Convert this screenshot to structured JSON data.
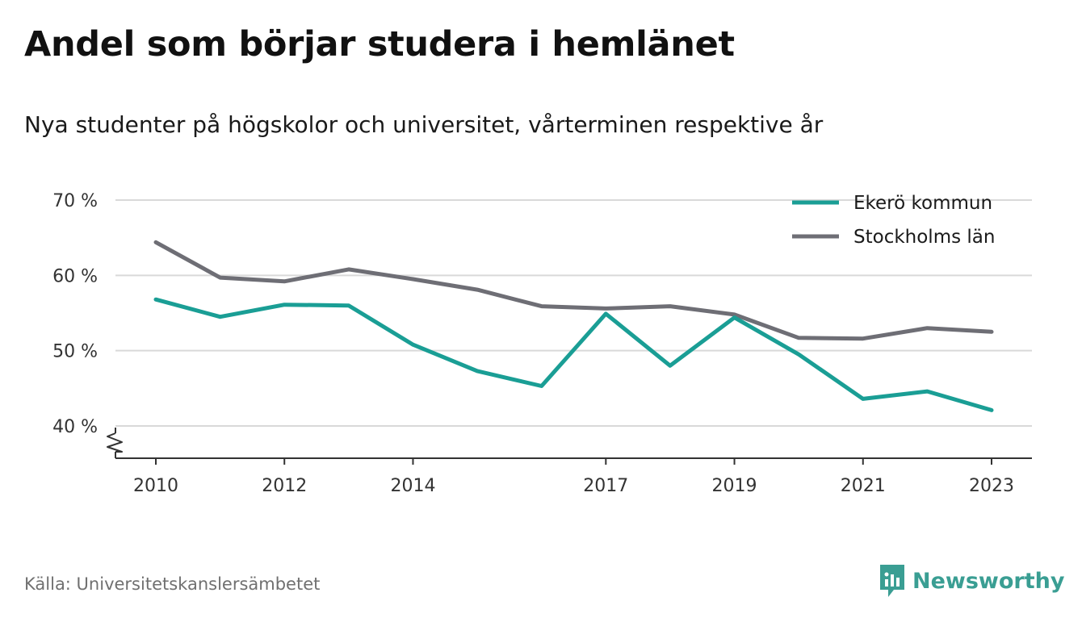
{
  "title": "Andel som börjar studera i hemlänet",
  "subtitle": "Nya studenter på högskolor och universitet, vårterminen respektive år",
  "source": "Källa: Universitetskanslersämbetet",
  "brand": {
    "name": "Newsworthy",
    "icon": "newsworthy-logo-icon",
    "color": "#3a9e93"
  },
  "colors": {
    "ekero": "#1a9e95",
    "stockholm": "#6e6e75",
    "grid": "#d9d9d9",
    "axis": "#333333"
  },
  "chart_data": {
    "type": "line",
    "title": "Andel som börjar studera i hemlänet",
    "subtitle": "Nya studenter på högskolor och universitet, vårterminen respektive år",
    "x": [
      2010,
      2011,
      2012,
      2013,
      2014,
      2015,
      2016,
      2017,
      2018,
      2019,
      2020,
      2021,
      2022,
      2023
    ],
    "x_ticks": [
      "2010",
      "2012",
      "2014",
      "2017",
      "2019",
      "2021",
      "2023"
    ],
    "ylim": [
      40,
      70
    ],
    "y_ticks": [
      "40 %",
      "50 %",
      "60 %",
      "70 %"
    ],
    "y_axis_break": true,
    "grid": true,
    "legend_position": "top-right",
    "series": [
      {
        "name": "Ekerö kommun",
        "color": "#1a9e95",
        "values": [
          56.8,
          54.5,
          56.1,
          56.0,
          50.8,
          47.3,
          45.3,
          54.9,
          48.0,
          54.4,
          49.5,
          43.6,
          44.6,
          42.1
        ]
      },
      {
        "name": "Stockholms län",
        "color": "#6e6e75",
        "values": [
          64.4,
          59.7,
          59.2,
          60.8,
          59.5,
          58.1,
          55.9,
          55.6,
          55.9,
          54.8,
          51.7,
          51.6,
          53.0,
          52.5
        ]
      }
    ]
  }
}
